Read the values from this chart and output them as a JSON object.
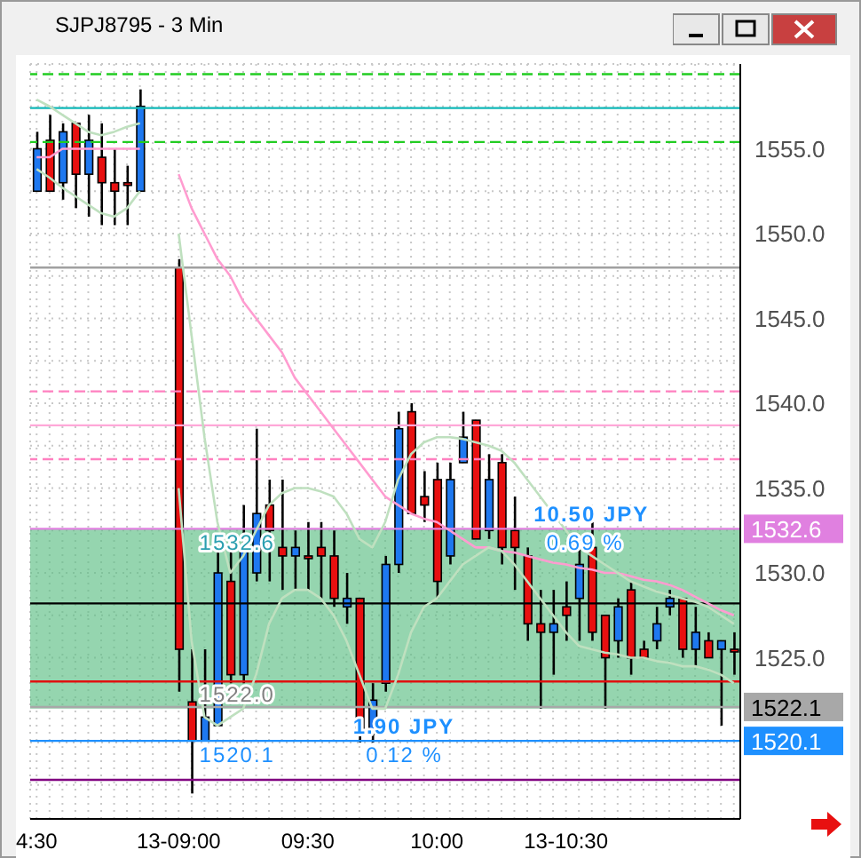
{
  "chart_data": {
    "type": "candlestick",
    "title": "SJPJ8795 - 3 Min",
    "categories": [
      "4:30",
      null,
      null,
      null,
      null,
      null,
      null,
      null,
      null,
      null,
      null,
      "13-09:00",
      null,
      null,
      null,
      null,
      null,
      null,
      null,
      null,
      null,
      "09:30",
      null,
      null,
      null,
      null,
      null,
      null,
      null,
      null,
      null,
      "10:00",
      null,
      null,
      null,
      null,
      null,
      null,
      null,
      null,
      null,
      "13-10:30",
      null,
      null,
      null,
      null,
      null,
      null,
      null,
      null,
      null,
      null,
      null,
      null,
      null
    ],
    "ohlc": [
      [
        1552.5,
        1556,
        1552.5,
        1555
      ],
      [
        1555.5,
        1557,
        1552.5,
        1552.5
      ],
      [
        1553,
        1556.5,
        1552,
        1556
      ],
      [
        1556.5,
        1556.5,
        1551.5,
        1553.5
      ],
      [
        1553.5,
        1557,
        1551,
        1555.5
      ],
      [
        1554.5,
        1556.5,
        1550.5,
        1553
      ],
      [
        1553,
        1555,
        1550.5,
        1552.5
      ],
      [
        1553,
        1554,
        1550.5,
        1553
      ],
      [
        1552.5,
        1558.5,
        1552.5,
        1557.5
      ],
      null,
      null,
      [
        1548,
        1548.5,
        1523,
        1525.5
      ],
      [
        1522.4,
        1525.5,
        1517,
        1520.1
      ],
      [
        1520.1,
        1525.5,
        1520.1,
        1521.5
      ],
      [
        1521,
        1531.5,
        1521,
        1530
      ],
      [
        1529.5,
        1531.5,
        1523.5,
        1524
      ],
      [
        1524,
        1534,
        1523.5,
        1531.5
      ],
      [
        1530,
        1538.5,
        1529.5,
        1533.5
      ],
      [
        1534,
        1535.5,
        1529.5,
        1532.5
      ],
      [
        1531.5,
        1535.5,
        1529,
        1531
      ],
      [
        1531,
        1532.5,
        1529,
        1531.5
      ],
      [
        1531,
        1533,
        1529,
        1531
      ],
      [
        1531.5,
        1533,
        1528.5,
        1531
      ],
      [
        1531,
        1532.5,
        1528,
        1528.5
      ],
      [
        1528,
        1530,
        1527,
        1528.5
      ],
      [
        1528.5,
        1528.5,
        1520,
        1520.5
      ],
      [
        1520.5,
        1523.5,
        1520,
        1522.5
      ],
      [
        1523.5,
        1531,
        1523,
        1530.5
      ],
      [
        1530.5,
        1539.5,
        1530,
        1538.5
      ],
      [
        1539.5,
        1540,
        1533.5,
        1533.5
      ],
      [
        1534.5,
        1536,
        1533,
        1534
      ],
      [
        1535.5,
        1536.5,
        1528.5,
        1529.5
      ],
      [
        1531,
        1536.5,
        1530.5,
        1535.5
      ],
      [
        1536.5,
        1539.5,
        1536.5,
        1538
      ],
      [
        1539,
        1539,
        1532,
        1532
      ],
      [
        1532.5,
        1537,
        1532,
        1535.5
      ],
      [
        1536.5,
        1537,
        1530.5,
        1531.5
      ],
      [
        1532.5,
        1534.5,
        1529,
        1531.5
      ],
      [
        1531,
        1531.5,
        1526,
        1527
      ],
      [
        1527,
        1529,
        1522,
        1526.5
      ],
      [
        1526.5,
        1529,
        1524,
        1527
      ],
      [
        1528,
        1529.5,
        1526,
        1527.5
      ],
      [
        1528.5,
        1531.5,
        1526,
        1530.5
      ],
      [
        1531.5,
        1533,
        1526,
        1526.5
      ],
      [
        1527.5,
        1527.5,
        1522,
        1525
      ],
      [
        1526,
        1528.5,
        1525,
        1528
      ],
      [
        1529,
        1529.5,
        1524,
        1525
      ],
      [
        1525.5,
        1526,
        1525,
        1525
      ],
      [
        1526,
        1528,
        1525.5,
        1527
      ],
      [
        1528,
        1529,
        1527.5,
        1528.5
      ],
      [
        1528.5,
        1528.5,
        1525,
        1525.5
      ],
      [
        1525.5,
        1528,
        1524.5,
        1526.5
      ],
      [
        1526,
        1526.5,
        1525,
        1525
      ],
      [
        1525.5,
        1526,
        1521,
        1526
      ],
      [
        1525.5,
        1526.5,
        1524,
        1525.5
      ]
    ],
    "colors": [
      "#1e78f0",
      "#e81010",
      "#1e78f0",
      "#e81010",
      "#1e78f0",
      "#e81010",
      "#e81010",
      "#e81010",
      "#1e78f0",
      null,
      null,
      "#e81010",
      "#e81010",
      "#1e78f0",
      "#1e78f0",
      "#e81010",
      "#1e78f0",
      "#1e78f0",
      "#e81010",
      "#e81010",
      "#1e78f0",
      "#e81010",
      "#e81010",
      "#e81010",
      "#1e78f0",
      "#e81010",
      "#1e78f0",
      "#1e78f0",
      "#1e78f0",
      "#e81010",
      "#e81010",
      "#e81010",
      "#1e78f0",
      "#1e78f0",
      "#e81010",
      "#1e78f0",
      "#e81010",
      "#e81010",
      "#e81010",
      "#e81010",
      "#1e78f0",
      "#e81010",
      "#1e78f0",
      "#e81010",
      "#e81010",
      "#1e78f0",
      "#e81010",
      "#e81010",
      "#1e78f0",
      "#1e78f0",
      "#e81010",
      "#1e78f0",
      "#e81010",
      "#1e78f0",
      "#e81010"
    ],
    "series": [
      {
        "type": "line",
        "color": "#ff9cd0",
        "values": [
          1554.5,
          1554.5,
          1555,
          1555,
          1555,
          1555,
          1555,
          1555,
          1555,
          null,
          null,
          1553.5,
          1551.5,
          1550,
          1548.5,
          1547.5,
          1546,
          1545,
          1544,
          1543,
          1541.5,
          1540.5,
          1539.5,
          1538.5,
          1537.5,
          1536.5,
          1535.5,
          1534.5,
          1534,
          1533.5,
          1533.2,
          1533,
          1532.5,
          1532,
          1531.5,
          1531.5,
          1531.3,
          1531.2,
          1531,
          1530.8,
          1530.6,
          1530.5,
          1530.3,
          1530.2,
          1530,
          1530,
          1529.8,
          1529.6,
          1529.5,
          1529.3,
          1529,
          1528.6,
          1528.2,
          1527.8,
          1527.5
        ]
      },
      {
        "type": "line",
        "color": "#bfe0bf",
        "values": [
          1557.9,
          1557.5,
          1557,
          1556.5,
          1556,
          1555.8,
          1556,
          1556.3,
          1556.5,
          null,
          null,
          1550,
          1544,
          1538,
          1533,
          1530,
          1531,
          1532.5,
          1534,
          1534.7,
          1535,
          1535,
          1534.8,
          1534.5,
          1533.5,
          1532,
          1531.5,
          1533,
          1535.5,
          1537,
          1537.7,
          1538,
          1538,
          1537.9,
          1537.7,
          1537.5,
          1537.2,
          1536.5,
          1535.5,
          1534.5,
          1533.5,
          1532.5,
          1531.5,
          1531,
          1530.5,
          1530,
          1529.5,
          1529.2,
          1528.9,
          1528.7,
          1528.5,
          1528.3,
          1528,
          1527.5,
          1527
        ]
      },
      {
        "type": "line",
        "color": "#bfe0bf",
        "values": [
          1553.8,
          1553.3,
          1552.7,
          1552.2,
          1551.7,
          1551.2,
          1551,
          1551.5,
          1552.5,
          null,
          null,
          1535,
          1526,
          1521.5,
          1521,
          1521.5,
          1522,
          1524,
          1527,
          1528.5,
          1529,
          1529,
          1528.5,
          1527.5,
          1526,
          1524,
          1522,
          1522,
          1524,
          1526.5,
          1528,
          1528.5,
          1529.5,
          1530.5,
          1531,
          1531.5,
          1531.3,
          1530.5,
          1529.5,
          1528.5,
          1527.5,
          1526.5,
          1525.7,
          1525.5,
          1525.3,
          1525.2,
          1525,
          1525,
          1524.8,
          1524.7,
          1524.5,
          1524.5,
          1524.3,
          1524,
          1523.5
        ]
      }
    ],
    "ylim": [
      1515.5,
      1560
    ],
    "yticks": [
      {
        "value": 1517.5,
        "label": null
      },
      {
        "value": 1520,
        "label": null
      },
      {
        "value": 1522.5,
        "label": null
      },
      {
        "value": 1525,
        "label": "1525.0"
      },
      {
        "value": 1527.5,
        "label": null
      },
      {
        "value": 1530,
        "label": "1530.0"
      },
      {
        "value": 1532.5,
        "label": null
      },
      {
        "value": 1535,
        "label": "1535.0"
      },
      {
        "value": 1537.5,
        "label": null
      },
      {
        "value": 1540,
        "label": "1540.0"
      },
      {
        "value": 1542.5,
        "label": null
      },
      {
        "value": 1545,
        "label": "1545.0"
      },
      {
        "value": 1547.5,
        "label": null
      },
      {
        "value": 1550,
        "label": "1550.0"
      },
      {
        "value": 1552.5,
        "label": null
      },
      {
        "value": 1555,
        "label": "1555.0"
      },
      {
        "value": 1557.5,
        "label": null
      }
    ],
    "grid": true,
    "bands": [
      {
        "axis": "y",
        "from": 1522,
        "to": 1532.6,
        "color": "#5cbf84"
      }
    ],
    "ref_lines": [
      {
        "axis": "y",
        "value": 1559.4,
        "color": "#22cc22",
        "line_style": "dashed"
      },
      {
        "axis": "y",
        "value": 1557.4,
        "color": "#10b8b8",
        "line_style": "solid"
      },
      {
        "axis": "y",
        "value": 1555.4,
        "color": "#22cc22",
        "line_style": "dashed"
      },
      {
        "axis": "y",
        "value": 1548,
        "color": "#a0a0a0",
        "line_style": "solid"
      },
      {
        "axis": "y",
        "value": 1540.7,
        "color": "#ff80c0",
        "line_style": "dashed"
      },
      {
        "axis": "y",
        "value": 1538.7,
        "color": "#ffa8d8",
        "line_style": "solid"
      },
      {
        "axis": "y",
        "value": 1536.7,
        "color": "#ff80c0",
        "line_style": "dashed"
      },
      {
        "axis": "y",
        "value": 1532.6,
        "color": "#e080e0",
        "line_style": "solid",
        "label": "1532.6"
      },
      {
        "axis": "y",
        "value": 1528.2,
        "color": "#000000",
        "line_style": "solid"
      },
      {
        "axis": "y",
        "value": 1523.6,
        "color": "#e01010",
        "line_style": "solid"
      },
      {
        "axis": "y",
        "value": 1522.1,
        "color": "#a8a8a8",
        "line_style": "solid",
        "label": "1522.1"
      },
      {
        "axis": "y",
        "value": 1520.1,
        "color": "#1e90ff",
        "line_style": "solid",
        "label": "1520.1"
      },
      {
        "axis": "y",
        "value": 1517.8,
        "color": "#800080",
        "line_style": "solid"
      }
    ],
    "annotations": [
      {
        "text": "1532.6",
        "y": 1532.6
      },
      {
        "text": "1522.0",
        "y": 1522
      },
      {
        "text": "10.50 JPY",
        "y": 1532.6
      },
      {
        "text": "0.69 %",
        "y": 1532.6
      },
      {
        "text": "1.90 JPY",
        "y": 1520.1
      },
      {
        "text": "0.12 %",
        "y": 1520.1
      },
      {
        "text": "1520.1",
        "y": 1520.1
      }
    ]
  }
}
